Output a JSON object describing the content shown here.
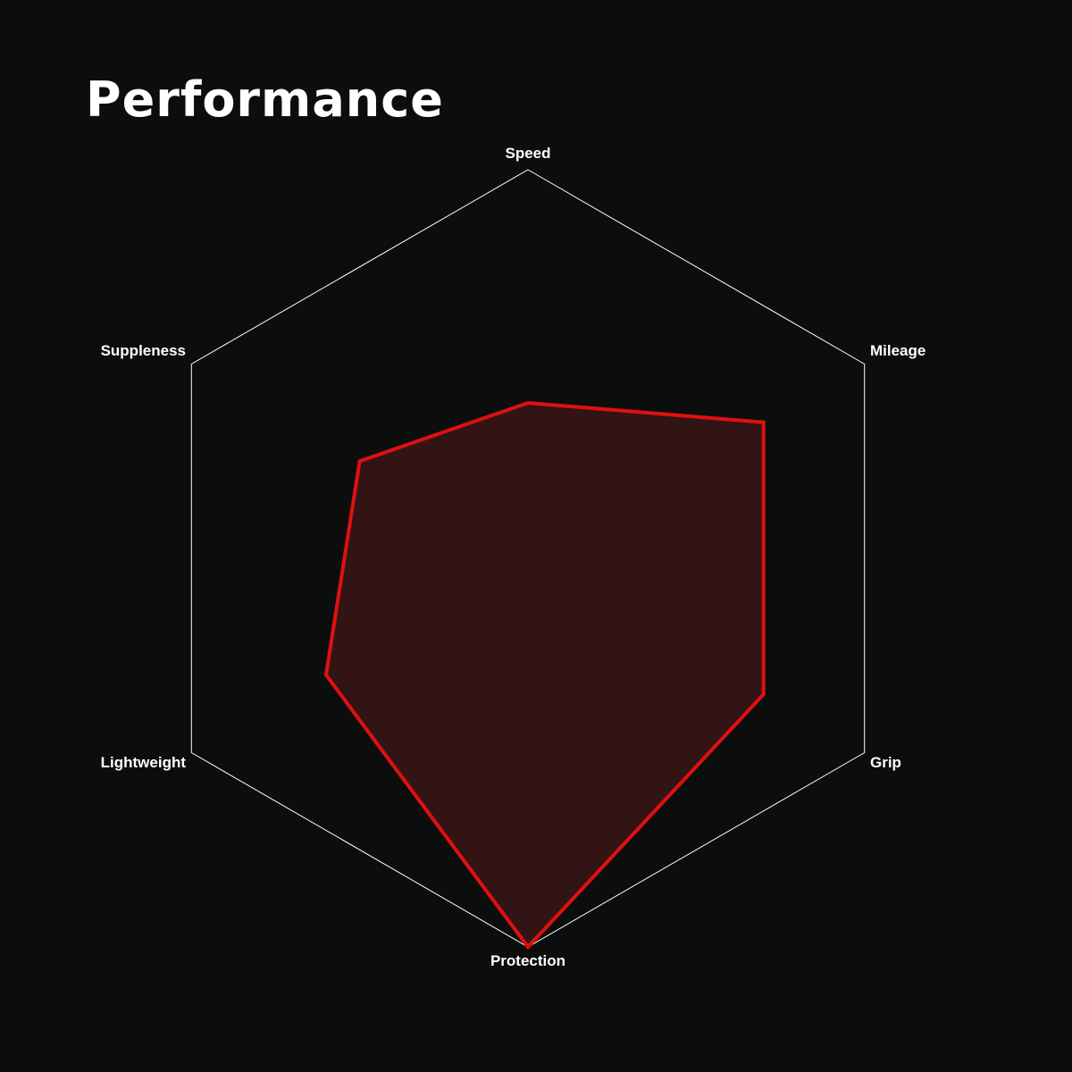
{
  "chart_data": {
    "type": "radar",
    "title": "Performance",
    "axes": [
      "Speed",
      "Mileage",
      "Grip",
      "Protection",
      "Lightweight",
      "Suppleness"
    ],
    "values": [
      4,
      7,
      7,
      10,
      6,
      5
    ],
    "range": [
      0,
      10
    ],
    "grid": "outer hexagon only",
    "colors": {
      "background": "#0c0e0e",
      "stroke": "#e01010",
      "fill": "#331414",
      "grid": "#ffffff"
    }
  }
}
